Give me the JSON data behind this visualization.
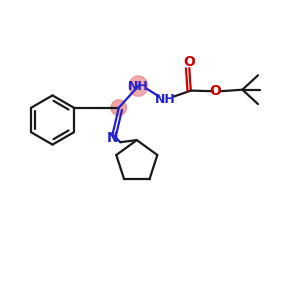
{
  "bg_color": "#ffffff",
  "bond_color": "#1a1a1a",
  "nitrogen_color": "#2222cc",
  "oxygen_color": "#cc0000",
  "highlight_color": "#e88080",
  "figsize": [
    3.0,
    3.0
  ],
  "dpi": 100,
  "xlim": [
    0,
    10
  ],
  "ylim": [
    0,
    10
  ]
}
